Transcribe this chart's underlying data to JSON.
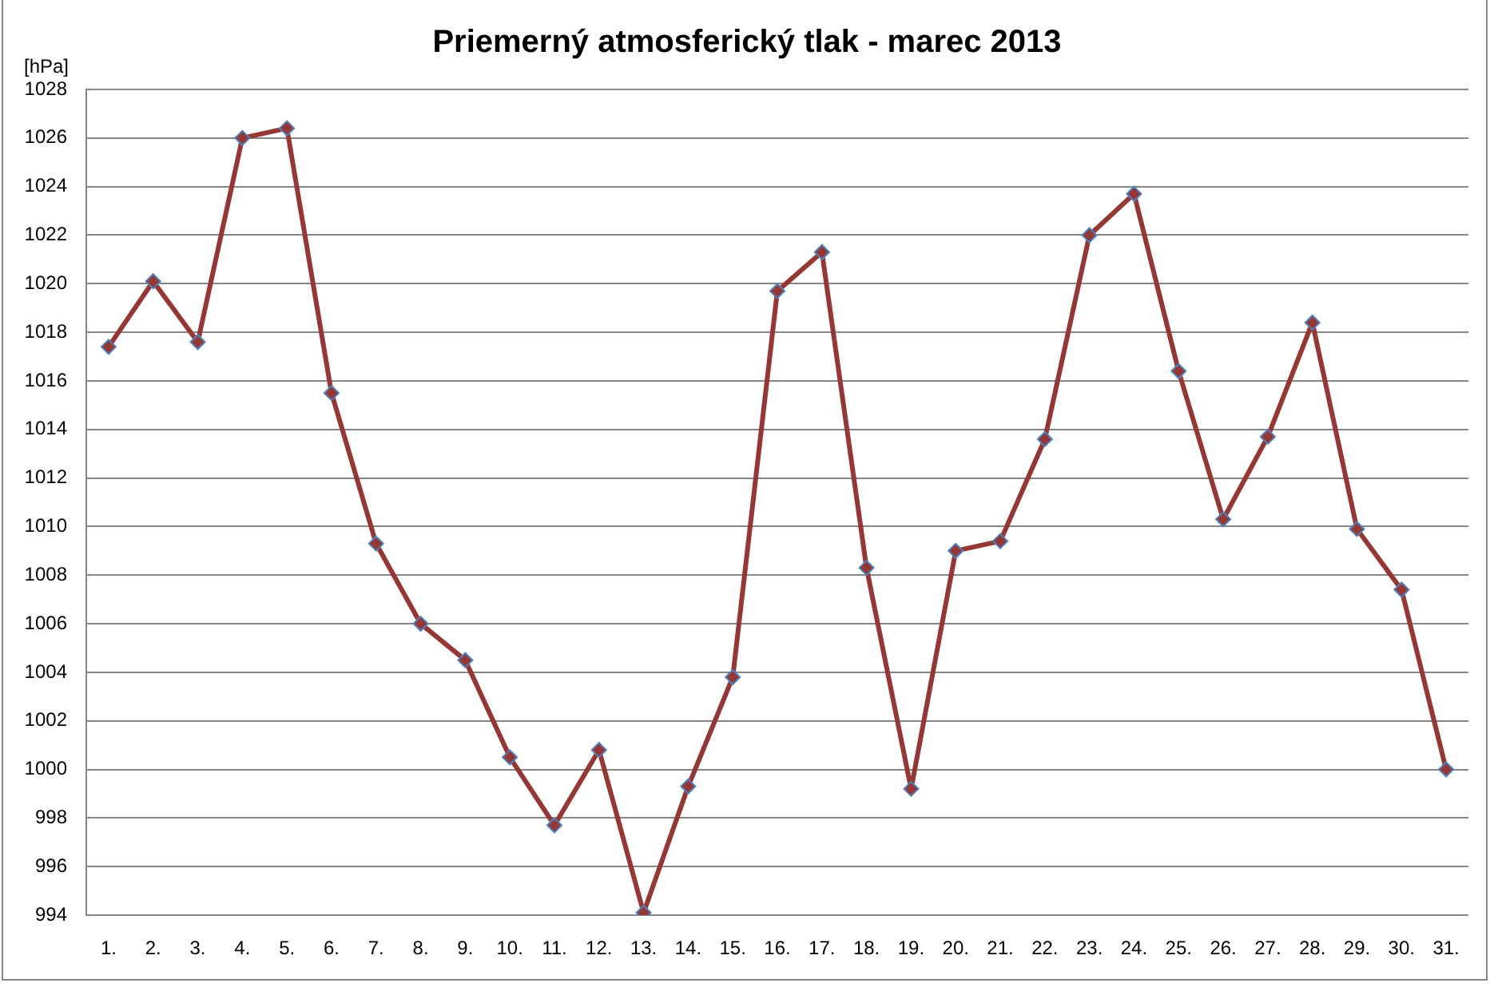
{
  "chart_data": {
    "type": "line",
    "title": "Priemerný atmosferický tlak - marec 2013",
    "ylabel": "[hPa]",
    "categories": [
      "1.",
      "2.",
      "3.",
      "4.",
      "5.",
      "6.",
      "7.",
      "8.",
      "9.",
      "10.",
      "11.",
      "12.",
      "13.",
      "14.",
      "15.",
      "16.",
      "17.",
      "18.",
      "19.",
      "20.",
      "21.",
      "22.",
      "23.",
      "24.",
      "25.",
      "26.",
      "27.",
      "28.",
      "29.",
      "30.",
      "31."
    ],
    "values": [
      1017.4,
      1020.1,
      1017.6,
      1026.0,
      1026.4,
      1015.5,
      1009.3,
      1006.0,
      1004.5,
      1000.5,
      997.7,
      1000.8,
      994.1,
      999.3,
      1003.8,
      1019.7,
      1021.3,
      1008.3,
      999.2,
      1009.0,
      1009.4,
      1013.6,
      1022.0,
      1023.7,
      1016.4,
      1010.3,
      1013.7,
      1018.4,
      1009.9,
      1007.4,
      1000.0
    ],
    "color": "#953735",
    "ylim": [
      994,
      1028
    ],
    "yticks": [
      994,
      996,
      998,
      1000,
      1002,
      1004,
      1006,
      1008,
      1010,
      1012,
      1014,
      1016,
      1018,
      1020,
      1022,
      1024,
      1026,
      1028
    ],
    "grid": "y",
    "legend": false,
    "marker": "diamond",
    "line_style": "solid"
  }
}
